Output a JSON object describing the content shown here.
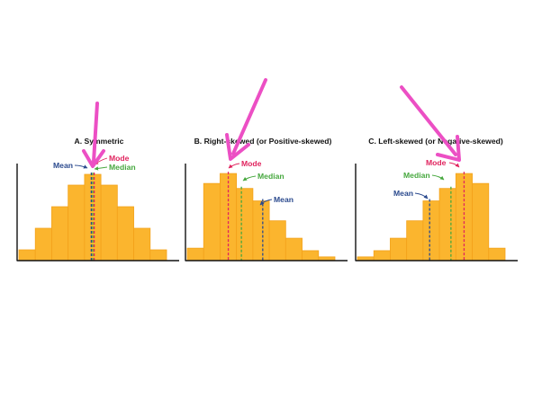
{
  "colors": {
    "bar_fill": "#fbb52e",
    "bar_stroke": "#f3a21b",
    "axis": "#111111",
    "mean": "#2b4a8e",
    "median": "#47a83f",
    "mode": "#e0245e",
    "overlay_arrow": "#ec4fc4"
  },
  "chart_data": [
    {
      "type": "bar",
      "title": "A. Symmetric",
      "bins": 9,
      "values": [
        1,
        3,
        5,
        7,
        8,
        7,
        5,
        3,
        1
      ],
      "ylim": [
        0,
        9
      ],
      "markers": {
        "mean": 4.5,
        "median": 4.5,
        "mode": 4.5
      },
      "labels": {
        "mean": "Mean",
        "median": "Median",
        "mode": "Mode"
      }
    },
    {
      "type": "bar",
      "title": "B. Right-skewed (or Positive-skewed)",
      "bins": 9,
      "values": [
        1,
        6.2,
        7,
        5.8,
        4.8,
        3.2,
        1.8,
        0.8,
        0.3
      ],
      "ylim": [
        0,
        7.8
      ],
      "markers": {
        "mode": 2.5,
        "median": 3.3,
        "mean": 4.6
      },
      "labels": {
        "mean": "Mean",
        "median": "Median",
        "mode": "Mode"
      }
    },
    {
      "type": "bar",
      "title": "C. Left-skewed (or Negative-skewed)",
      "bins": 9,
      "values": [
        0.3,
        0.8,
        1.8,
        3.2,
        4.8,
        5.8,
        7,
        6.2,
        1
      ],
      "ylim": [
        0,
        7.8
      ],
      "markers": {
        "mean": 4.4,
        "median": 5.7,
        "mode": 6.5
      },
      "labels": {
        "mean": "Mean",
        "median": "Median",
        "mode": "Mode"
      }
    }
  ]
}
